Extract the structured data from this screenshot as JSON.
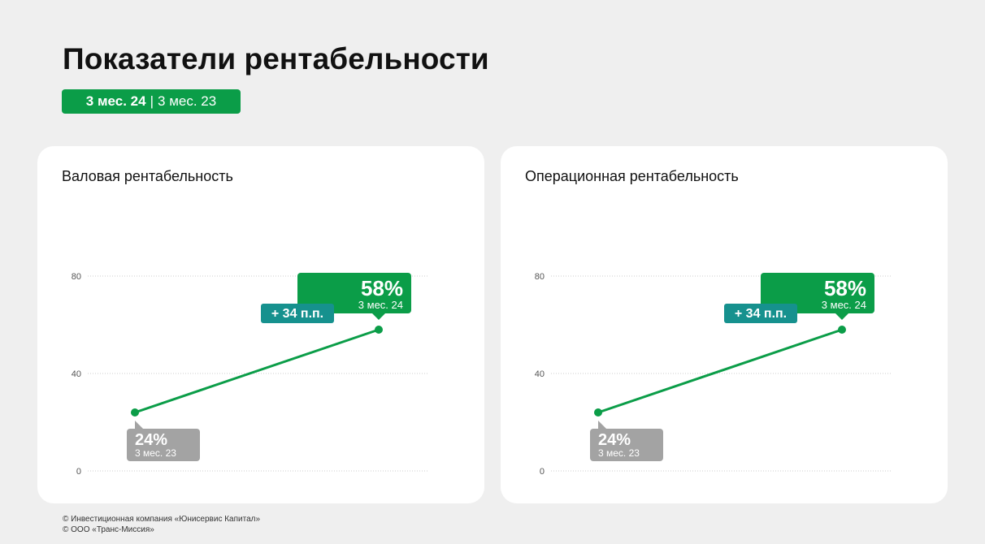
{
  "page": {
    "title": "Показатели рентабельности",
    "period_badge": {
      "current": "3 мес. 24",
      "separator": "|",
      "previous": "3 мес. 23"
    }
  },
  "colors": {
    "accent_green": "#0b9d48",
    "teal": "#16918e",
    "gray_label": "#a3a3a3",
    "grid": "#cccccc",
    "background": "#efefef"
  },
  "chart_data": [
    {
      "type": "line",
      "title": "Валовая рентабельность",
      "x": [
        "3 мес. 23",
        "3 мес. 24"
      ],
      "series": [
        {
          "values": [
            24,
            58
          ]
        }
      ],
      "ylim": [
        0,
        80
      ],
      "yticks": [
        "0",
        "40",
        "80"
      ],
      "grid": true,
      "labels": {
        "end_value": "58%",
        "end_period": "3 мес. 24",
        "start_value": "24%",
        "start_period": "3 мес. 23",
        "change": "+ 34 п.п."
      }
    },
    {
      "type": "line",
      "title": "Операционная рентабельность",
      "x": [
        "3 мес. 23",
        "3 мес. 24"
      ],
      "series": [
        {
          "values": [
            24,
            58
          ]
        }
      ],
      "ylim": [
        0,
        80
      ],
      "yticks": [
        "0",
        "40",
        "80"
      ],
      "grid": true,
      "labels": {
        "end_value": "58%",
        "end_period": "3 мес. 24",
        "start_value": "24%",
        "start_period": "3 мес. 23",
        "change": "+ 34 п.п."
      }
    }
  ],
  "footer": {
    "line1": "© Инвестиционная компания «Юнисервис Капитал»",
    "line2": "© ООО «Транс-Миссия»"
  }
}
